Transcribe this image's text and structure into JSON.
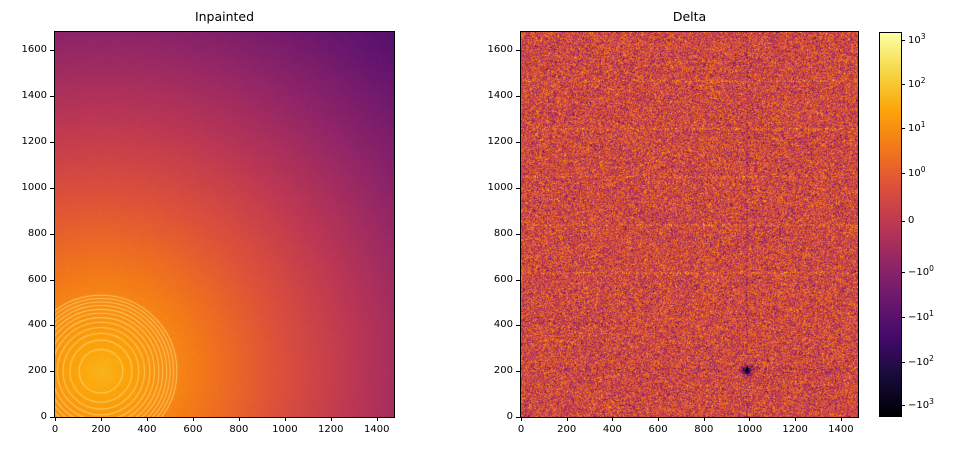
{
  "figure": {
    "background": "#ffffff"
  },
  "colormap": {
    "name": "inferno",
    "anchors": [
      [
        0.0,
        [
          0,
          0,
          4
        ]
      ],
      [
        0.1,
        [
          22,
          11,
          57
        ]
      ],
      [
        0.2,
        [
          66,
          10,
          104
        ]
      ],
      [
        0.3,
        [
          106,
          23,
          110
        ]
      ],
      [
        0.4,
        [
          147,
          38,
          103
        ]
      ],
      [
        0.5,
        [
          188,
          55,
          84
        ]
      ],
      [
        0.6,
        [
          221,
          81,
          58
        ]
      ],
      [
        0.7,
        [
          243,
          120,
          25
        ]
      ],
      [
        0.8,
        [
          252,
          165,
          10
        ]
      ],
      [
        0.9,
        [
          246,
          215,
          70
        ]
      ],
      [
        1.0,
        [
          252,
          255,
          164
        ]
      ]
    ]
  },
  "chart_data": [
    {
      "id": "inpainted",
      "type": "heatmap",
      "title": "Inpainted",
      "x_range": [
        0,
        1475
      ],
      "y_range": [
        0,
        1680
      ],
      "x_ticks": [
        {
          "value": 0,
          "label": "0"
        },
        {
          "value": 200,
          "label": "200"
        },
        {
          "value": 400,
          "label": "400"
        },
        {
          "value": 600,
          "label": "600"
        },
        {
          "value": 800,
          "label": "800"
        },
        {
          "value": 1000,
          "label": "1000"
        },
        {
          "value": 1200,
          "label": "1200"
        },
        {
          "value": 1400,
          "label": "1400"
        }
      ],
      "y_ticks": [
        {
          "value": 0,
          "label": "0"
        },
        {
          "value": 200,
          "label": "200"
        },
        {
          "value": 400,
          "label": "400"
        },
        {
          "value": 600,
          "label": "600"
        },
        {
          "value": 800,
          "label": "800"
        },
        {
          "value": 1000,
          "label": "1000"
        },
        {
          "value": 1200,
          "label": "1200"
        },
        {
          "value": 1400,
          "label": "1400"
        },
        {
          "value": 1600,
          "label": "1600"
        }
      ],
      "model": {
        "kind": "radial-gradient",
        "center": [
          200,
          200
        ],
        "t_center": 0.83,
        "t_slope_per_1000": 0.3,
        "t_min": 0.1,
        "grain": 0.014,
        "rings": {
          "radii": [
            95,
            135,
            165,
            190,
            213,
            233,
            252,
            269,
            286,
            301,
            316,
            330
          ],
          "color": "rgba(253,208,104,0.85)",
          "width": 1.1
        }
      }
    },
    {
      "id": "delta",
      "type": "heatmap",
      "title": "Delta",
      "x_range": [
        0,
        1475
      ],
      "y_range": [
        0,
        1680
      ],
      "x_ticks": [
        {
          "value": 0,
          "label": "0"
        },
        {
          "value": 200,
          "label": "200"
        },
        {
          "value": 400,
          "label": "400"
        },
        {
          "value": 600,
          "label": "600"
        },
        {
          "value": 800,
          "label": "800"
        },
        {
          "value": 1000,
          "label": "1000"
        },
        {
          "value": 1200,
          "label": "1200"
        },
        {
          "value": 1400,
          "label": "1400"
        }
      ],
      "y_ticks": [
        {
          "value": 0,
          "label": "0"
        },
        {
          "value": 200,
          "label": "200"
        },
        {
          "value": 400,
          "label": "400"
        },
        {
          "value": 600,
          "label": "600"
        },
        {
          "value": 800,
          "label": "800"
        },
        {
          "value": 1000,
          "label": "1000"
        },
        {
          "value": 1200,
          "label": "1200"
        },
        {
          "value": 1400,
          "label": "1400"
        },
        {
          "value": 1600,
          "label": "1600"
        }
      ],
      "model": {
        "kind": "noise",
        "t_base": 0.56,
        "t_spread": 0.26,
        "bright_rows": {
          "ys": [
            630,
            840,
            1050,
            1260,
            1470
          ],
          "halfwidth": 4,
          "prob": 0.4,
          "boost": 0.11
        },
        "dark_row": {
          "y": 212,
          "halfwidth": 6,
          "prob": 0.26,
          "drop": 0.17
        },
        "squiggle": {
          "y": 415,
          "x_max": 410,
          "amp": 5,
          "wavelength": 90,
          "halfwidth": 3,
          "prob": 0.75,
          "drop": 0.15
        },
        "vline": {
          "x": 988,
          "halfwidth": 5,
          "prob": 0.45,
          "drop": 0.11
        },
        "dark_spot": {
          "x": 988,
          "y": 205,
          "sigma": 14,
          "drop": 0.5
        },
        "outlier_dark_prob": 0.012,
        "outlier_dark_drop": 0.22,
        "outlier_bright_prob": 0.012,
        "outlier_bright_boost": 0.1
      }
    }
  ],
  "colorbar": {
    "scale": "symlog",
    "ticks": [
      {
        "base": "10",
        "exp": "3",
        "pos": 0.018
      },
      {
        "base": "10",
        "exp": "2",
        "pos": 0.134
      },
      {
        "base": "10",
        "exp": "1",
        "pos": 0.249
      },
      {
        "base": "10",
        "exp": "0",
        "pos": 0.365
      },
      {
        "base": "0",
        "exp": "",
        "pos": 0.492
      },
      {
        "base": "−10",
        "exp": "0",
        "pos": 0.625
      },
      {
        "base": "−10",
        "exp": "1",
        "pos": 0.742
      },
      {
        "base": "−10",
        "exp": "2",
        "pos": 0.859
      },
      {
        "base": "−10",
        "exp": "3",
        "pos": 0.971
      }
    ]
  }
}
